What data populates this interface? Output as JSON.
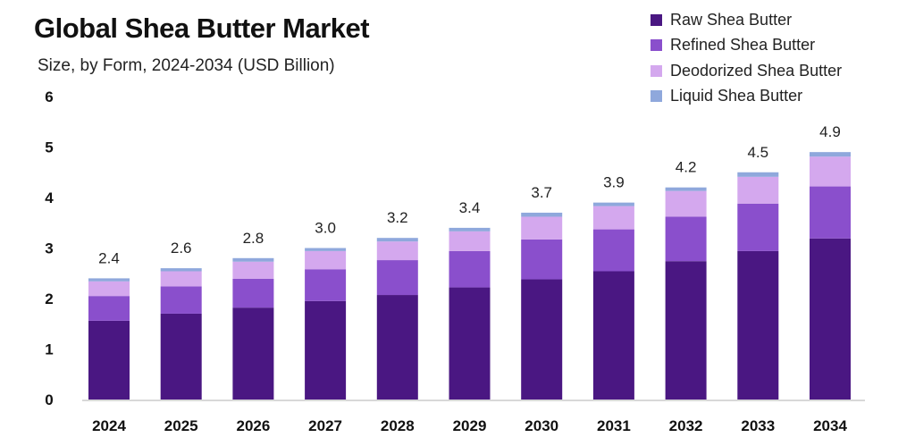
{
  "chart_data": {
    "type": "bar",
    "stacked": true,
    "title": "Global Shea Butter Market",
    "subtitle": "Size, by Form, 2024-2034 (USD Billion)",
    "xlabel": "",
    "ylabel": "",
    "ylim": [
      0,
      6
    ],
    "yticks": [
      "0",
      "1",
      "2",
      "3",
      "4",
      "5",
      "6"
    ],
    "grid": false,
    "legend_position": "top-right",
    "categories": [
      "2024",
      "2025",
      "2026",
      "2027",
      "2028",
      "2029",
      "2030",
      "2031",
      "2032",
      "2033",
      "2034"
    ],
    "totals_labels": [
      "2.4",
      "2.6",
      "2.8",
      "3.0",
      "3.2",
      "3.4",
      "3.7",
      "3.9",
      "4.2",
      "4.5",
      "4.9"
    ],
    "series": [
      {
        "name": "Raw Shea Butter",
        "color": "#4a1782",
        "values": [
          1.56,
          1.7,
          1.82,
          1.95,
          2.07,
          2.22,
          2.38,
          2.54,
          2.74,
          2.94,
          3.19
        ]
      },
      {
        "name": "Refined Shea Butter",
        "color": "#8a4fcc",
        "values": [
          0.49,
          0.54,
          0.57,
          0.63,
          0.69,
          0.72,
          0.79,
          0.83,
          0.88,
          0.94,
          1.03
        ]
      },
      {
        "name": "Deodorized Shea Butter",
        "color": "#d4a8ee",
        "values": [
          0.29,
          0.3,
          0.34,
          0.36,
          0.37,
          0.39,
          0.45,
          0.46,
          0.51,
          0.53,
          0.59
        ]
      },
      {
        "name": "Liquid Shea Butter",
        "color": "#8fa8dc",
        "values": [
          0.06,
          0.06,
          0.07,
          0.06,
          0.07,
          0.07,
          0.08,
          0.07,
          0.07,
          0.09,
          0.09
        ]
      }
    ]
  }
}
